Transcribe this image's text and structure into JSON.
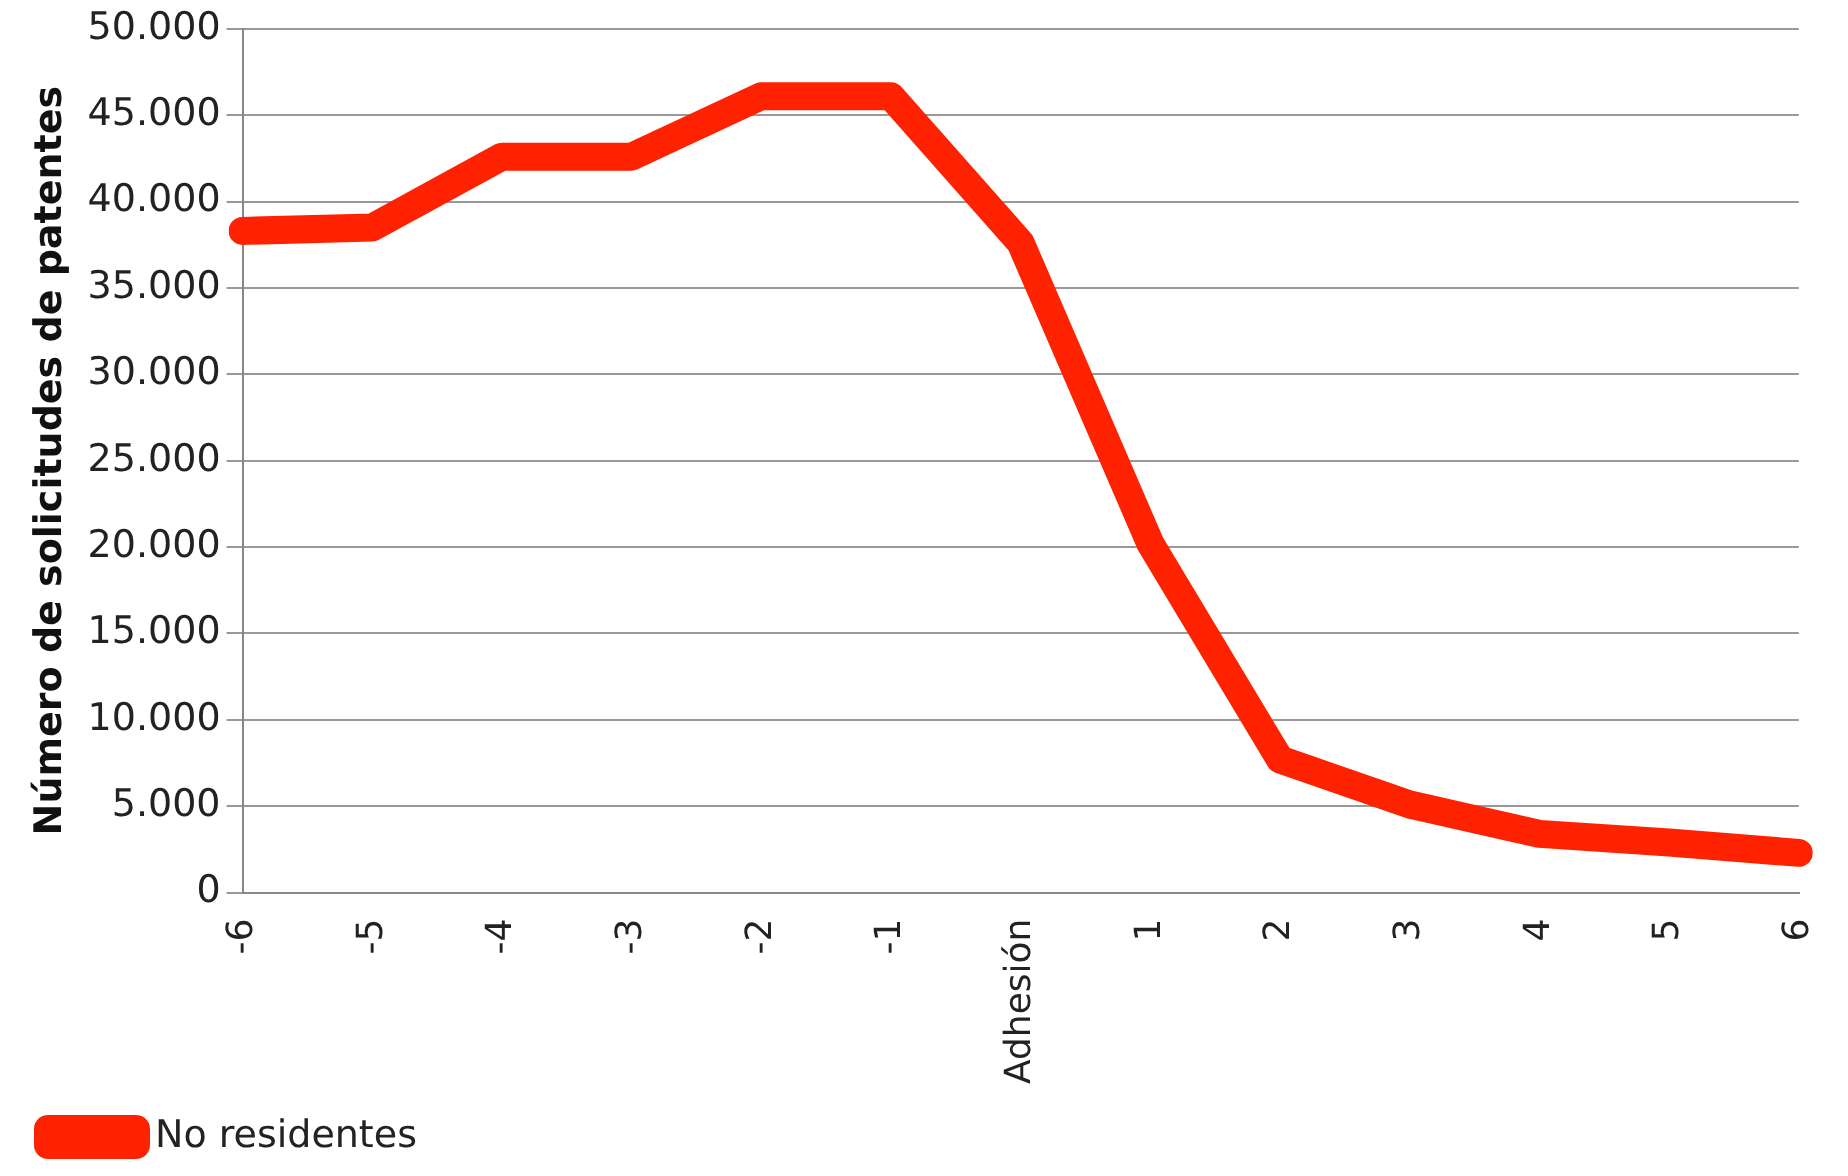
{
  "chart_data": {
    "type": "line",
    "ylabel": "Número de solicitudes de patentes",
    "categories": [
      "-6",
      "-5",
      "-4",
      "-3",
      "-2",
      "-1",
      "Adhesión",
      "1",
      "2",
      "3",
      "4",
      "5",
      "6"
    ],
    "series": [
      {
        "name": "No residentes",
        "color": "#ff2200",
        "values": [
          38300,
          38500,
          42600,
          42600,
          46100,
          46100,
          37600,
          20200,
          7700,
          5100,
          3400,
          2900,
          2300
        ]
      }
    ],
    "ylim": [
      0,
      50000
    ],
    "yticks": [
      0,
      {
        "value": 5000,
        "label": "5.000"
      },
      {
        "value": 10000,
        "label": "10.000"
      },
      {
        "value": 15000,
        "label": "15.000"
      },
      {
        "value": 20000,
        "label": "20.000"
      },
      {
        "value": 25000,
        "label": "25.000"
      },
      {
        "value": 30000,
        "label": "30.000"
      },
      {
        "value": 35000,
        "label": "35.000"
      },
      {
        "value": 40000,
        "label": "40.000"
      },
      {
        "value": 45000,
        "label": "45.000"
      },
      {
        "value": 50000,
        "label": "50.000"
      }
    ],
    "grid": "y",
    "legend": "bottom left",
    "marker": "none",
    "line_style": "solid"
  }
}
